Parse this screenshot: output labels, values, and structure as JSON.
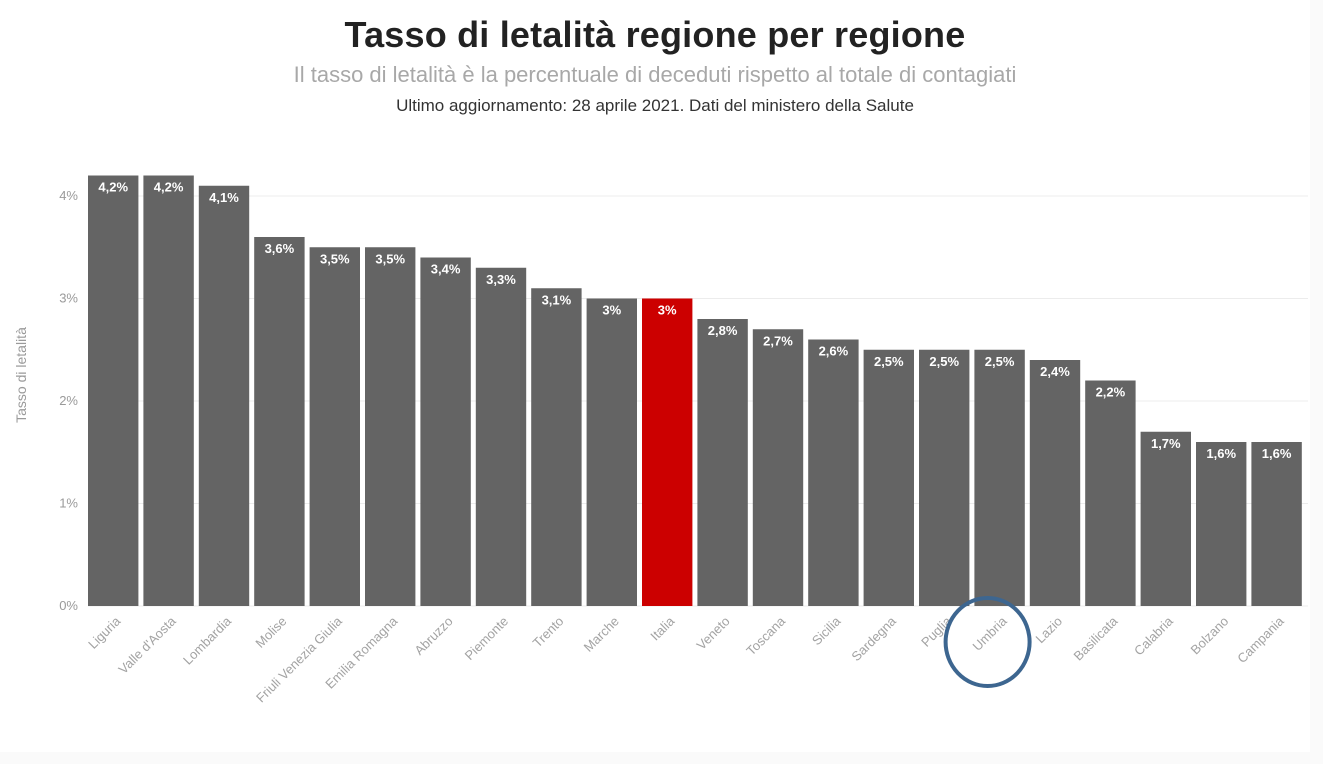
{
  "header": {
    "title": "Tasso di letalità regione per regione",
    "subtitle": "Il tasso di letalità è la percentuale di deceduti rispetto al totale di contagiati",
    "updated": "Ultimo aggiornamento: 28 aprile 2021. Dati del ministero della Salute"
  },
  "colors": {
    "bar": "#646464",
    "highlight": "#cc0000",
    "circle": "#3d6690"
  },
  "chart_data": {
    "type": "bar",
    "ylabel": "Tasso di letalità",
    "xlabel": "",
    "ylim": [
      0,
      4.2
    ],
    "yticks": [
      {
        "value": 0,
        "label": "0%"
      },
      {
        "value": 1,
        "label": "1%"
      },
      {
        "value": 2,
        "label": "2%"
      },
      {
        "value": 3,
        "label": "3%"
      },
      {
        "value": 4,
        "label": "4%"
      }
    ],
    "grid": true,
    "categories": [
      "Liguria",
      "Valle d'Aosta",
      "Lombardia",
      "Molise",
      "Friuli Venezia Giulia",
      "Emilia Romagna",
      "Abruzzo",
      "Piemonte",
      "Trento",
      "Marche",
      "Italia",
      "Veneto",
      "Toscana",
      "Sicilia",
      "Sardegna",
      "Puglia",
      "Umbria",
      "Lazio",
      "Basilicata",
      "Calabria",
      "Bolzano",
      "Campania"
    ],
    "values": [
      4.2,
      4.2,
      4.1,
      3.6,
      3.5,
      3.5,
      3.4,
      3.3,
      3.1,
      3.0,
      3.0,
      2.8,
      2.7,
      2.6,
      2.5,
      2.5,
      2.5,
      2.4,
      2.2,
      1.7,
      1.6,
      1.6
    ],
    "data_labels": [
      "4,2%",
      "4,2%",
      "4,1%",
      "3,6%",
      "3,5%",
      "3,5%",
      "3,4%",
      "3,3%",
      "3,1%",
      "3%",
      "3%",
      "2,8%",
      "2,7%",
      "2,6%",
      "2,5%",
      "2,5%",
      "2,5%",
      "2,4%",
      "2,2%",
      "1,7%",
      "1,6%",
      "1,6%"
    ],
    "highlighted_category": "Italia",
    "circled_category": "Umbria"
  }
}
